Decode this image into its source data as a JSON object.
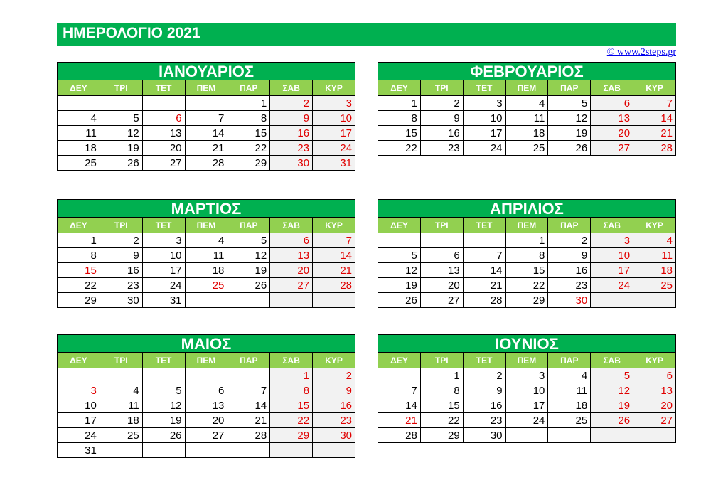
{
  "title": "ΗΜΕΡΟΛΟΓΙΟ 2021",
  "credit": "© www.2steps.gr",
  "weekdays": [
    "ΔΕΥ",
    "ΤΡΙ",
    "ΤΕΤ",
    "ΠΕΜ",
    "ΠΑΡ",
    "ΣΑΒ",
    "ΚΥΡ"
  ],
  "colors": {
    "green": "#00b050",
    "light_green": "#92d050",
    "red": "#e00000",
    "weekend_bg": "#f2f2f2"
  },
  "months": [
    {
      "name": "ΙΑΝΟΥΑΡΙΟΣ",
      "start": 4,
      "days": 31,
      "holidays": [
        6
      ]
    },
    {
      "name": "ΦΕΒΡΟΥΑΡΙΟΣ",
      "start": 0,
      "days": 28,
      "holidays": []
    },
    {
      "name": "ΜΑΡΤΙΟΣ",
      "start": 0,
      "days": 31,
      "holidays": [
        15,
        25
      ]
    },
    {
      "name": "ΑΠΡΙΛΙΟΣ",
      "start": 3,
      "days": 30,
      "holidays": [
        30
      ]
    },
    {
      "name": "ΜΑΙΟΣ",
      "start": 5,
      "days": 31,
      "holidays": [
        3
      ]
    },
    {
      "name": "ΙΟΥΝΙΟΣ",
      "start": 1,
      "days": 30,
      "holidays": [
        21
      ]
    }
  ]
}
